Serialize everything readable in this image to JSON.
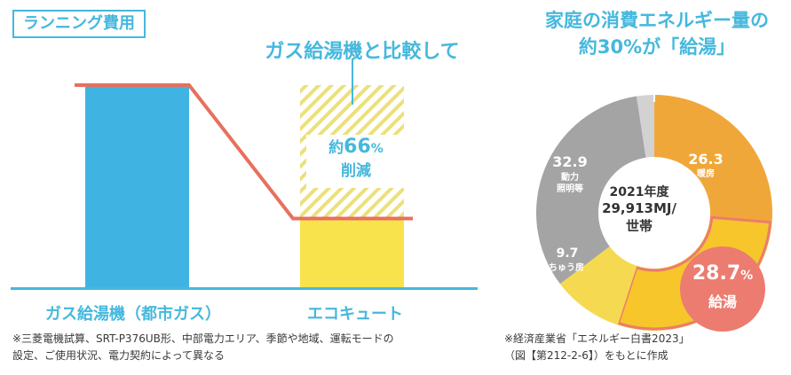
{
  "left_panel": {
    "tag": "ランニング費用",
    "subtitle": "ガス給湯機と比較して",
    "reduction": {
      "prefix": "約",
      "value": "66",
      "unit": "%",
      "label": "削減"
    },
    "note_line1": "※三菱電機試算、SRT-P376UB形、中部電力エリア、季節や地域、運転モードの",
    "note_line2": "設定、ご使用状況、電力契約によって異なる"
  },
  "right_panel": {
    "title_line1": "家庭の消費エネルギー量の",
    "title_line2": "約30%が「給湯」",
    "center_year": "2021年度",
    "center_value": "29,913MJ/",
    "center_unit": "世帯",
    "source_line1": "※経済産業省「エネルギー白書2023」",
    "source_line2": "（図【第212-2-6】）をもとに作成"
  },
  "chart_data": [
    {
      "type": "bar",
      "categories": [
        "ガス給湯機（都市ガス）",
        "エコキュート"
      ],
      "values": [
        100,
        34
      ],
      "ylim": [
        0,
        100
      ],
      "colors": [
        "#3fb4e3",
        "#f8e34c"
      ],
      "line_color": "#e8705d",
      "hatch_color": "#ece07a"
    },
    {
      "type": "pie",
      "slices": [
        {
          "label": "暖房",
          "value": 26.3,
          "pct": "26.3",
          "color": "#f0a73a"
        },
        {
          "label": "給湯",
          "value": 28.7,
          "pct": "28.7",
          "color": "#f6c62b"
        },
        {
          "label": "ちゅう房",
          "value": 9.7,
          "pct": "9.7",
          "color": "#f5d950"
        },
        {
          "label": "動力\n照明等",
          "value": 32.9,
          "pct": "32.9",
          "color": "#a4a4a4"
        },
        {
          "label": "",
          "value": 2.4,
          "pct": "",
          "color": "#d2d2d2"
        }
      ],
      "highlight_color": "#ec7c70"
    }
  ]
}
